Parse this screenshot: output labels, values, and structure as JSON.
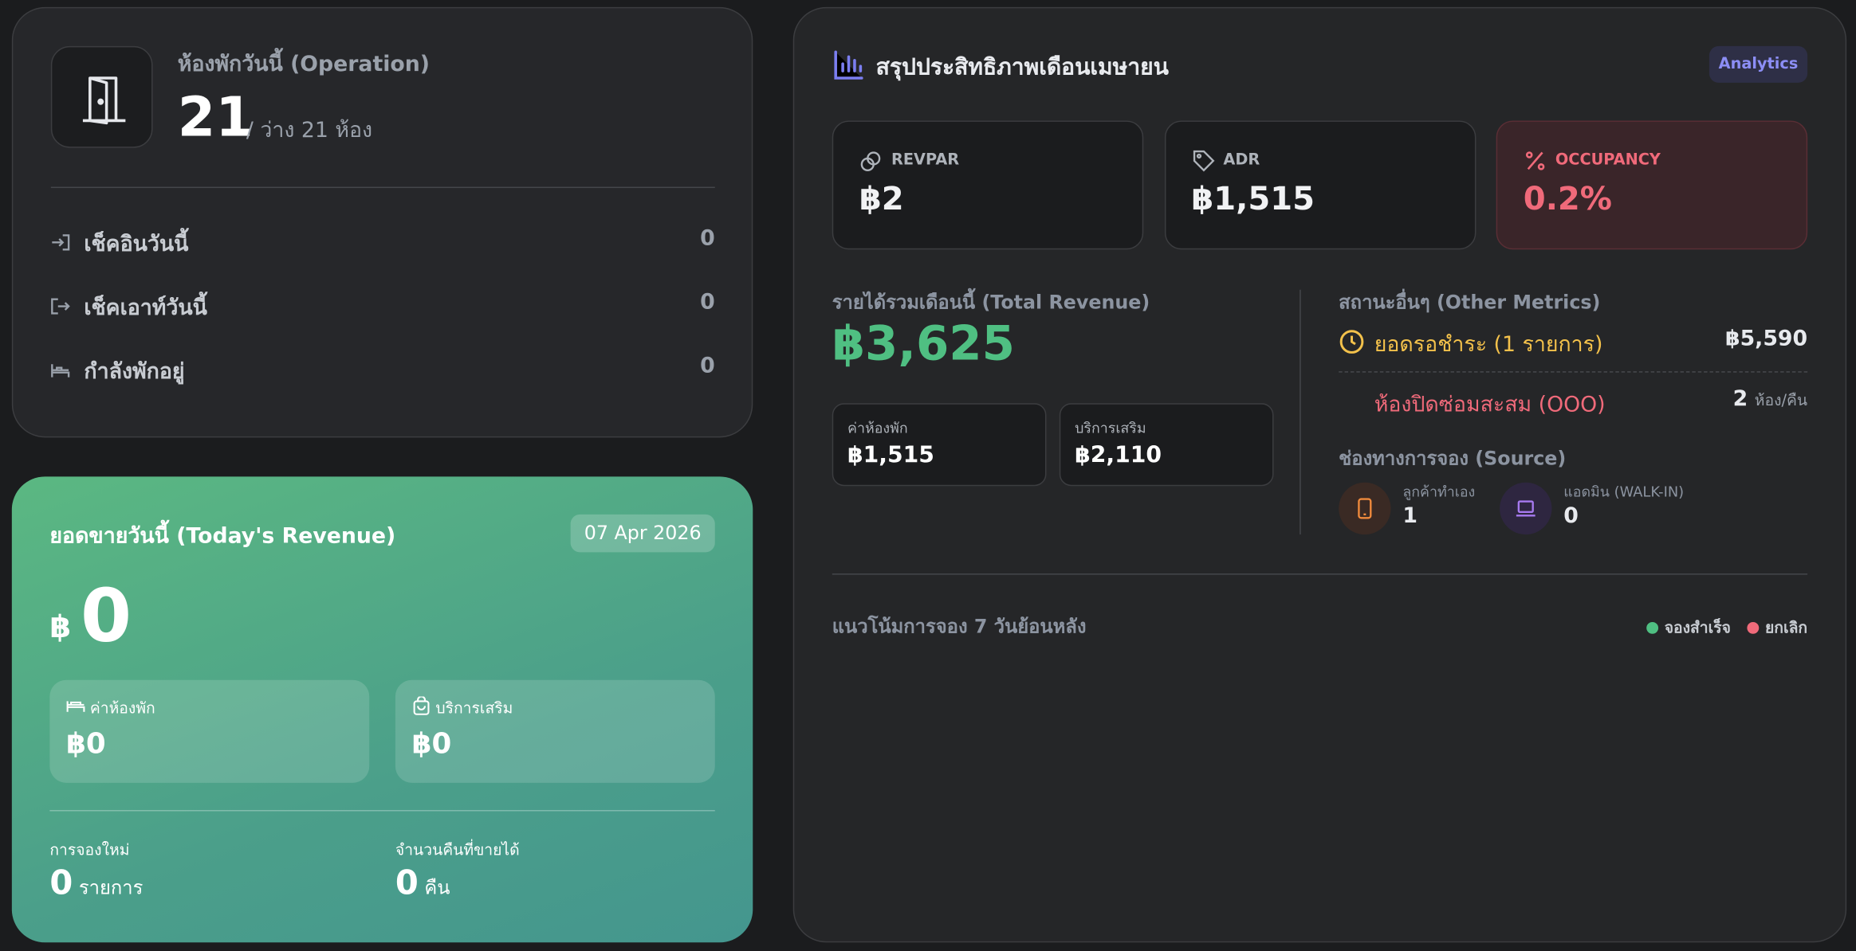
{
  "operation": {
    "title": "ห้องพักวันนี้ (Operation)",
    "count": "21",
    "available": "/ ว่าง 21 ห้อง",
    "rows": [
      {
        "label": "เช็คอินวันนี้",
        "value": "0"
      },
      {
        "label": "เช็คเอาท์วันนี้",
        "value": "0"
      },
      {
        "label": "กำลังพักอยู่",
        "value": "0"
      }
    ]
  },
  "today": {
    "title": "ยอดขายวันนี้ (Today's Revenue)",
    "date": "07 Apr 2026",
    "currency": "฿",
    "amount": "0",
    "breakdown": [
      {
        "label": "ค่าห้องพัก",
        "value": "฿0"
      },
      {
        "label": "บริการเสริม",
        "value": "฿0"
      }
    ],
    "stats": [
      {
        "label": "การจองใหม่",
        "value": "0",
        "unit": "รายการ"
      },
      {
        "label": "จำนวนคืนที่ขายได้",
        "value": "0",
        "unit": "คืน"
      }
    ]
  },
  "analytics": {
    "title": "สรุปประสิทธิภาพเดือนเมษายน",
    "badge": "Analytics",
    "kpis": [
      {
        "label": "REVPAR",
        "value": "฿2"
      },
      {
        "label": "ADR",
        "value": "฿1,515"
      },
      {
        "label": "OCCUPANCY",
        "value": "0.2%"
      }
    ],
    "total_revenue": {
      "label": "รายได้รวมเดือนนี้ (Total Revenue)",
      "value": "฿3,625",
      "breakdown": [
        {
          "label": "ค่าห้องพัก",
          "value": "฿1,515"
        },
        {
          "label": "บริการเสริม",
          "value": "฿2,110"
        }
      ]
    },
    "other": {
      "title": "สถานะอื่นๆ (Other Metrics)",
      "pending": {
        "label": "ยอดรอชำระ (1 รายการ)",
        "value": "฿5,590"
      },
      "ooo": {
        "label": "ห้องปิดซ่อมสะสม (OOO)",
        "value": "2",
        "unit": "ห้อง/คืน"
      }
    },
    "source": {
      "title": "ช่องทางการจอง (Source)",
      "items": [
        {
          "label": "ลูกค้าทำเอง",
          "value": "1"
        },
        {
          "label": "แอดมิน (WALK-IN)",
          "value": "0"
        }
      ]
    },
    "trend": {
      "title": "แนวโน้มการจอง 7 วันย้อนหลัง",
      "legend": [
        "จองสำเร็จ",
        "ยกเลิก"
      ]
    }
  }
}
